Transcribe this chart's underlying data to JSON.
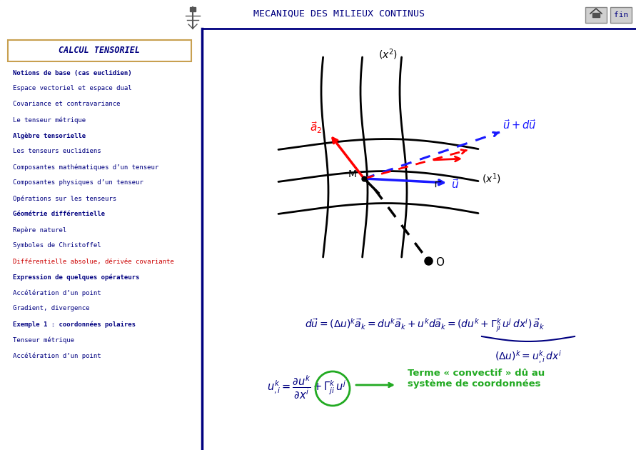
{
  "bg_color": "#f4f4f4",
  "title_text": "MECANIQUE DES MILIEUX CONTINUS",
  "title_color": "#000080",
  "sidebar_title": "CALCUL TENSORIEL",
  "sidebar_title_color": "#000080",
  "sidebar_box_color": "#c8a050",
  "nav_items": [
    {
      "text": "Notions de base (cas euclidien)",
      "bold": true,
      "underline": true,
      "color": "#000080"
    },
    {
      "text": "Espace vectoriel et espace dual",
      "bold": false,
      "underline": false,
      "color": "#000080"
    },
    {
      "text": "Covariance et contravariance",
      "bold": false,
      "underline": false,
      "color": "#000080"
    },
    {
      "text": "Le tenseur métrique",
      "bold": false,
      "underline": false,
      "color": "#000080"
    },
    {
      "text": "Algèbre tensorielle",
      "bold": true,
      "underline": true,
      "color": "#000080"
    },
    {
      "text": "Les tenseurs euclidiens",
      "bold": false,
      "underline": false,
      "color": "#000080"
    },
    {
      "text": "Composantes mathématiques d’un tenseur",
      "bold": false,
      "underline": false,
      "color": "#000080"
    },
    {
      "text": "Composantes physiques d’un tenseur",
      "bold": false,
      "underline": false,
      "color": "#000080"
    },
    {
      "text": "Opérations sur les tenseurs",
      "bold": false,
      "underline": false,
      "color": "#000080"
    },
    {
      "text": "Géométrie différentielle",
      "bold": true,
      "underline": true,
      "color": "#000080"
    },
    {
      "text": "Repère naturel",
      "bold": false,
      "underline": false,
      "color": "#000080"
    },
    {
      "text": "Symboles de Christoffel",
      "bold": false,
      "underline": false,
      "color": "#000080"
    },
    {
      "text": "Différentielle absolue, dérivée covariante",
      "bold": false,
      "underline": false,
      "color": "#cc0000"
    },
    {
      "text": "Expression de quelques opérateurs",
      "bold": true,
      "underline": true,
      "color": "#000080"
    },
    {
      "text": "Accélération d’un point",
      "bold": false,
      "underline": false,
      "color": "#000080"
    },
    {
      "text": "Gradient, divergence",
      "bold": false,
      "underline": false,
      "color": "#000080"
    },
    {
      "text": "Exemple 1 : coordonnées polaires",
      "bold": true,
      "underline": true,
      "color": "#000080"
    },
    {
      "text": "Tenseur métrique",
      "bold": false,
      "underline": false,
      "color": "#000080"
    },
    {
      "text": "Accélération d’un point",
      "bold": false,
      "underline": false,
      "color": "#000080"
    }
  ]
}
